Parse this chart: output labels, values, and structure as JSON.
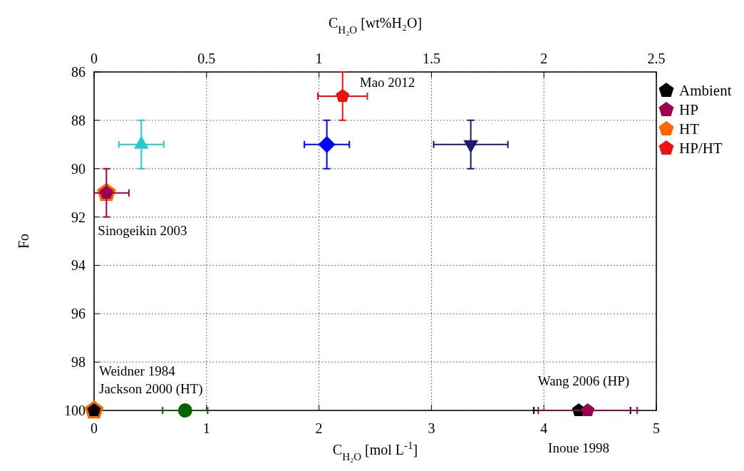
{
  "chart_data": {
    "type": "scatter",
    "xlabel": "C$_{H₂O}$ [mol L$^{-1}$]",
    "ylabel": "Fo",
    "x2label": "C$_{H₂O}$ [wt%H₂O]",
    "xlim": [
      0,
      5
    ],
    "xticks": [
      0,
      1,
      2,
      3,
      4,
      5
    ],
    "x2lim": [
      0,
      2.5
    ],
    "x2ticks": [
      0,
      0.5,
      1,
      1.5,
      2,
      2.5
    ],
    "ylim": [
      100,
      86
    ],
    "yticks": [
      86,
      88,
      90,
      92,
      94,
      96,
      98,
      100
    ],
    "grid": true,
    "legend": "right",
    "series": [
      {
        "name": "Ambient",
        "color": "#000000",
        "x": [
          0,
          4.31
        ],
        "values": [
          100,
          100
        ],
        "xerrors": [
          null,
          [
            3.91,
            4.77
          ]
        ],
        "errors": [
          null,
          null
        ]
      },
      {
        "name": "HP",
        "color": "#990050",
        "x": [
          0.11,
          4.39
        ],
        "values": [
          91,
          100
        ],
        "xerrors": [
          [
            0,
            0.31
          ],
          [
            3.95,
            4.83
          ]
        ],
        "errors": [
          1,
          null
        ]
      },
      {
        "name": "HT",
        "color": "#ff6600",
        "x": [
          0,
          0.11
        ],
        "values": [
          100,
          91
        ]
      },
      {
        "name": "HP/HT",
        "color": "#ee1111",
        "x": [
          2.21
        ],
        "values": [
          87
        ],
        "xerrors": [
          0.22
        ],
        "errors": [
          1
        ]
      },
      {
        "color": "#22cccc",
        "marker": "triangle",
        "x": [
          0.42
        ],
        "values": [
          89
        ],
        "xerrors": [
          0.2
        ],
        "errors": [
          1
        ]
      },
      {
        "color": "#0000ff",
        "marker": "diamond",
        "x": [
          2.07
        ],
        "values": [
          89
        ],
        "xerrors": [
          0.2
        ],
        "errors": [
          1
        ]
      },
      {
        "color": "#1a1a6e",
        "marker": "triangle-down",
        "x": [
          3.35
        ],
        "values": [
          89
        ],
        "xerrors": [
          0.33
        ],
        "errors": [
          1
        ]
      },
      {
        "color": "#006400",
        "marker": "circle",
        "x": [
          0.81
        ],
        "values": [
          100
        ],
        "xerrors": [
          0.2
        ]
      }
    ],
    "annotations": [
      {
        "text": "Mao 2012",
        "x": 2.21,
        "y": 87
      },
      {
        "text": "Sinogeikin 2003",
        "x": 0.11,
        "y": 91
      },
      {
        "text": "Weidner 1984",
        "x": 0,
        "y": 100
      },
      {
        "text": "Jackson 2000 (HT)",
        "x": 0,
        "y": 100
      },
      {
        "text": "Wang 2006 (HP)",
        "x": 4.39,
        "y": 100
      },
      {
        "text": "Inoue 1998",
        "x": 4.31,
        "y": 100
      }
    ]
  }
}
